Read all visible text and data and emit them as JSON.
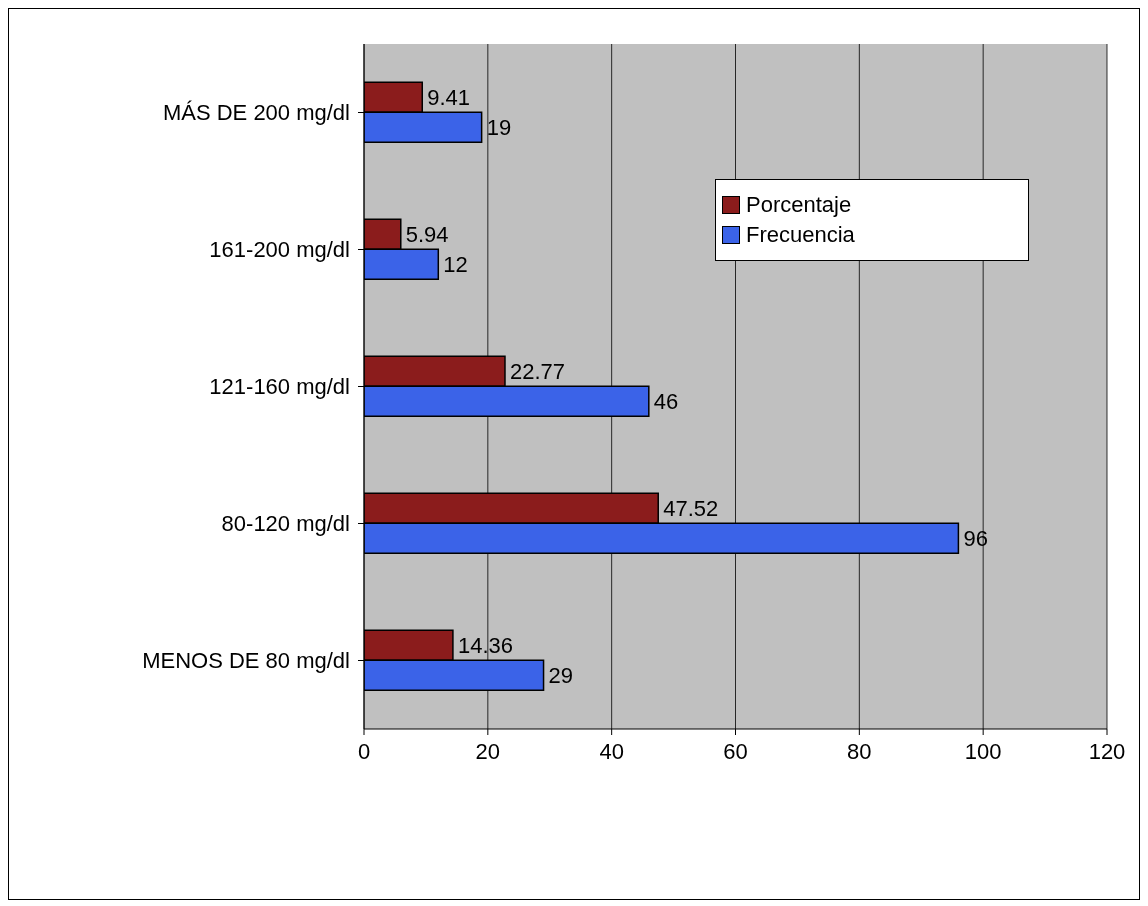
{
  "chart_data": {
    "type": "bar",
    "orientation": "horizontal",
    "categories": [
      "MÁS DE 200 mg/dl",
      "161-200 mg/dl",
      "121-160 mg/dl",
      "80-120 mg/dl",
      "MENOS DE 80 mg/dl"
    ],
    "series": [
      {
        "name": "Porcentaje",
        "color": "#8b1c1c",
        "values": [
          9.41,
          5.94,
          22.77,
          47.52,
          14.36
        ]
      },
      {
        "name": "Frecuencia",
        "color": "#3b63e8",
        "values": [
          19,
          12,
          46,
          96,
          29
        ]
      }
    ],
    "xlim": [
      0,
      120
    ],
    "xticks": [
      0,
      20,
      40,
      60,
      80,
      100,
      120
    ],
    "grid": "x",
    "legend": "top right",
    "data_labels": true
  }
}
